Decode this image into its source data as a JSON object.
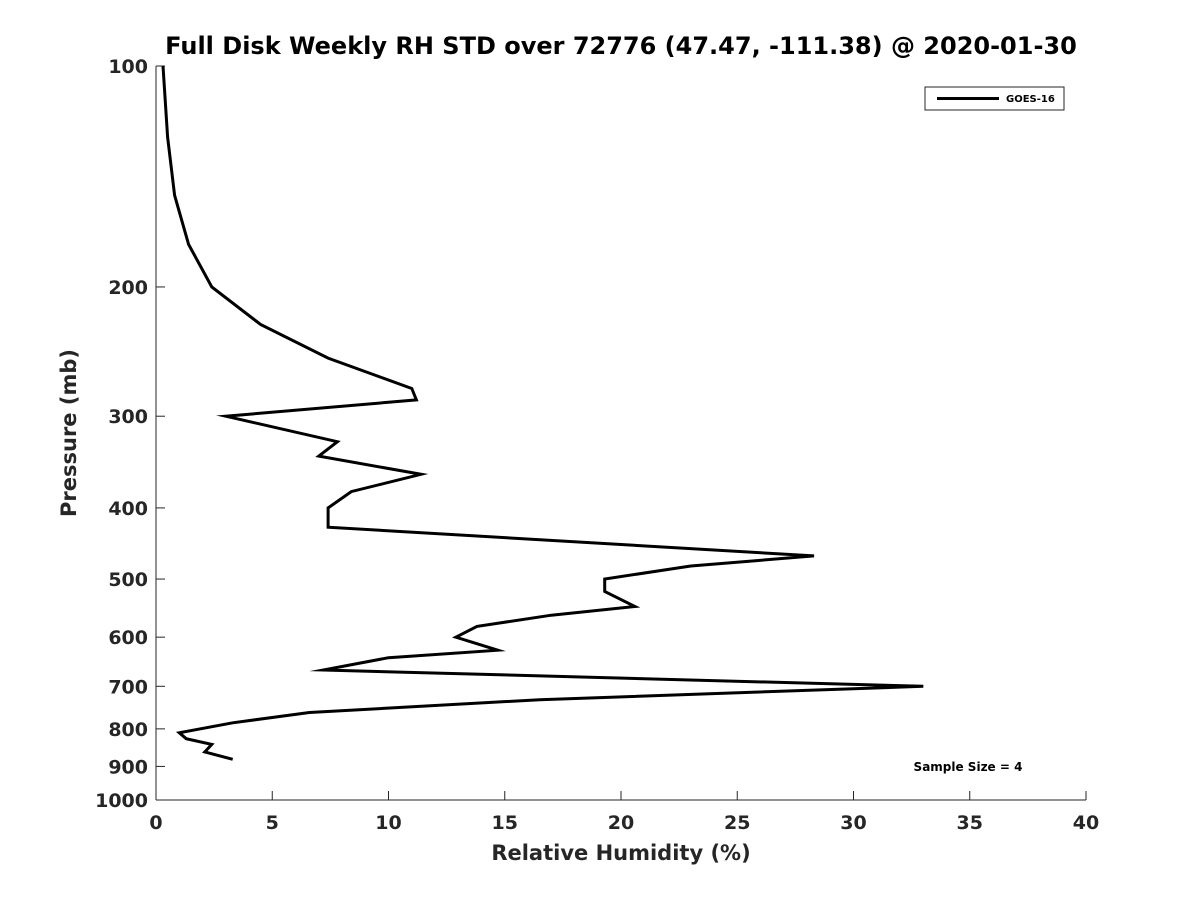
{
  "chart_data": {
    "type": "line",
    "title": "Full Disk Weekly RH STD over 72776 (47.47, -111.38) @ 2020-01-30",
    "xlabel": "Relative Humidity (%)",
    "ylabel": "Pressure (mb)",
    "xlim": [
      0,
      40
    ],
    "ylim": [
      100,
      1000
    ],
    "yscale": "log",
    "y_inverted": true,
    "xticks": [
      0,
      5,
      10,
      15,
      20,
      25,
      30,
      35,
      40
    ],
    "yticks": [
      100,
      200,
      300,
      400,
      500,
      600,
      700,
      800,
      900,
      1000
    ],
    "grid": false,
    "legend": {
      "position": "top-right",
      "entries": [
        "GOES-16"
      ]
    },
    "annotation": "Sample Size = 4",
    "series": [
      {
        "name": "GOES-16",
        "color": "#000000",
        "points": [
          [
            0.3,
            100
          ],
          [
            0.5,
            125
          ],
          [
            0.8,
            150
          ],
          [
            1.4,
            175
          ],
          [
            2.4,
            200
          ],
          [
            4.5,
            225
          ],
          [
            7.4,
            250
          ],
          [
            11.0,
            275
          ],
          [
            11.2,
            285
          ],
          [
            3.0,
            300
          ],
          [
            7.8,
            325
          ],
          [
            7.0,
            340
          ],
          [
            11.4,
            360
          ],
          [
            8.4,
            380
          ],
          [
            7.4,
            400
          ],
          [
            7.4,
            425
          ],
          [
            28.3,
            465
          ],
          [
            23.0,
            480
          ],
          [
            19.3,
            500
          ],
          [
            19.3,
            520
          ],
          [
            20.6,
            545
          ],
          [
            17.0,
            560
          ],
          [
            13.8,
            580
          ],
          [
            12.9,
            600
          ],
          [
            14.7,
            625
          ],
          [
            10.0,
            640
          ],
          [
            7.2,
            665
          ],
          [
            33.0,
            700
          ],
          [
            16.5,
            730
          ],
          [
            6.6,
            760
          ],
          [
            3.3,
            785
          ],
          [
            1.0,
            810
          ],
          [
            1.3,
            825
          ],
          [
            2.4,
            840
          ],
          [
            2.1,
            860
          ],
          [
            3.3,
            880
          ]
        ]
      }
    ]
  }
}
